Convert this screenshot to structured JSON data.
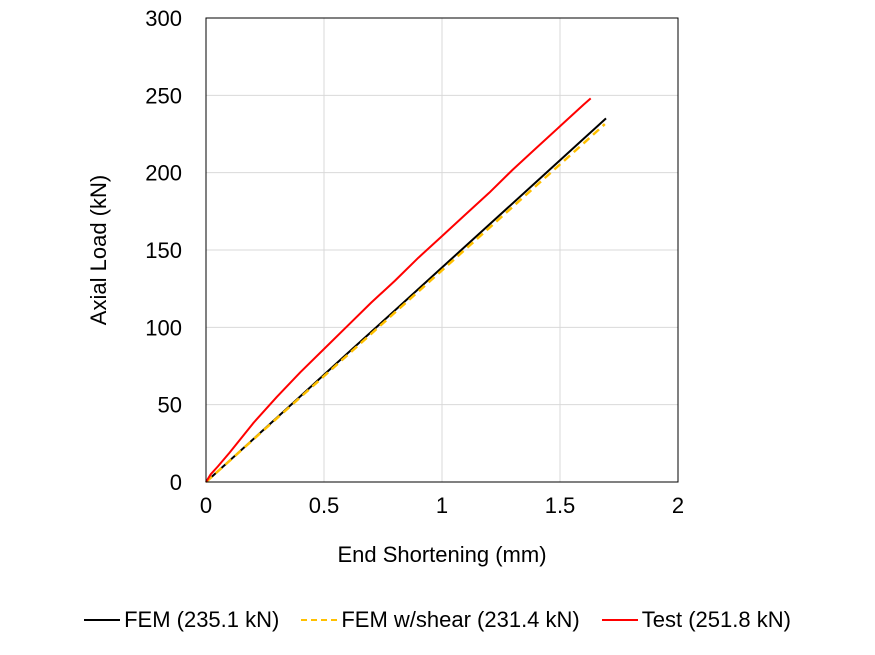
{
  "chart_data": {
    "type": "line",
    "xlabel": "End Shortening (mm)",
    "ylabel": "Axial Load (kN)",
    "xlim": [
      0,
      2
    ],
    "ylim": [
      0,
      300
    ],
    "x_ticks": [
      "0",
      "0.5",
      "1",
      "1.5",
      "2"
    ],
    "y_ticks": [
      "0",
      "50",
      "100",
      "150",
      "200",
      "250",
      "300"
    ],
    "grid": true,
    "legend_position": "bottom",
    "series": [
      {
        "name": "FEM (235.1 kN)",
        "color": "#000000",
        "style": "solid",
        "points": [
          [
            0,
            0
          ],
          [
            0.2,
            27.7
          ],
          [
            0.4,
            55.5
          ],
          [
            0.6,
            83.2
          ],
          [
            0.8,
            110.9
          ],
          [
            1.0,
            138.7
          ],
          [
            1.2,
            166.4
          ],
          [
            1.4,
            194.1
          ],
          [
            1.6,
            221.9
          ],
          [
            1.695,
            235.1
          ]
        ]
      },
      {
        "name": "FEM w/shear (231.4 kN)",
        "color": "#FFC000",
        "style": "dashed",
        "points": [
          [
            0,
            0
          ],
          [
            0.2,
            27.4
          ],
          [
            0.4,
            54.8
          ],
          [
            0.6,
            82.1
          ],
          [
            0.8,
            109.5
          ],
          [
            1.0,
            136.9
          ],
          [
            1.2,
            164.3
          ],
          [
            1.4,
            191.7
          ],
          [
            1.6,
            219.0
          ],
          [
            1.69,
            231.4
          ]
        ]
      },
      {
        "name": "Test (251.8 kN)",
        "color": "#FF0000",
        "style": "solid",
        "points": [
          [
            0,
            0
          ],
          [
            0.02,
            5
          ],
          [
            0.05,
            10
          ],
          [
            0.1,
            19
          ],
          [
            0.2,
            38
          ],
          [
            0.3,
            55
          ],
          [
            0.4,
            71
          ],
          [
            0.5,
            86
          ],
          [
            0.6,
            101
          ],
          [
            0.7,
            116
          ],
          [
            0.8,
            130
          ],
          [
            0.9,
            145
          ],
          [
            1.0,
            159
          ],
          [
            1.1,
            173
          ],
          [
            1.2,
            187
          ],
          [
            1.3,
            202
          ],
          [
            1.4,
            216
          ],
          [
            1.5,
            230
          ],
          [
            1.6,
            244
          ],
          [
            1.63,
            248
          ]
        ]
      }
    ]
  }
}
